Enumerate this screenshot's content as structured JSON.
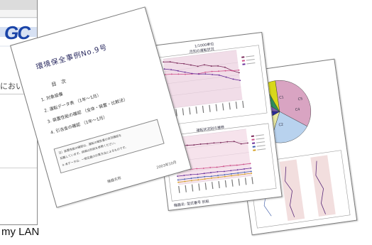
{
  "background_window": {
    "logo_text": "GC",
    "body_text": "におい",
    "accent_color": "#1a44a8"
  },
  "caption": "my LAN",
  "report_page": {
    "title": "環境保全事例No.9号",
    "toc_heading": "目　次",
    "toc_items": [
      "1. 対象設備",
      "2. 運転データ表 （1年〜1月）",
      "3. 装置性能の確認 （全体・装置・比較法）",
      "4. 引当金の確認 （1年〜1月）"
    ],
    "note_lines": [
      "注）装置性能の確認は、運転の報告書の状況確認を",
      "記載しています。詳細は別紙を参照ください。",
      "※ 本データは、一般定義の計算方法によるものです。"
    ],
    "footer_left": "機器名称",
    "footer_right": "2003年10月"
  },
  "chart_page": {
    "header": "1/1000単位",
    "chart1_title": "月別の運転状況",
    "chart2_title": "運転状況別の推移",
    "footer": "機器名: 型式番号 別紙"
  },
  "pie_page": {
    "slice_labels": [
      "C1",
      "C2",
      "C3",
      "C4",
      "C5"
    ]
  },
  "chart_data": [
    {
      "type": "line",
      "title": "月別の運転状況",
      "x": [
        1,
        2,
        3,
        4,
        5,
        6,
        7,
        8,
        9,
        10,
        11,
        12
      ],
      "series": [
        {
          "values": [
            330,
            325,
            310,
            300,
            285,
            270,
            275,
            260,
            255,
            240,
            210,
            190
          ]
        },
        {
          "values": [
            240,
            238,
            232,
            225,
            222,
            218,
            222,
            222,
            218,
            215,
            210,
            208
          ]
        },
        {
          "values": [
            280,
            270,
            255,
            240,
            225,
            215,
            210,
            200,
            190,
            170,
            150,
            135
          ]
        }
      ],
      "ylim": [
        0,
        350
      ],
      "grid": true
    },
    {
      "type": "line",
      "title": "運転状況別の推移",
      "x": [
        1,
        2,
        3,
        4,
        5,
        6,
        7,
        8,
        9,
        10,
        11,
        12
      ],
      "series": [
        {
          "values": [
            82,
            81,
            81,
            80,
            80,
            79,
            79,
            78,
            78,
            77,
            70,
            70
          ]
        },
        {
          "values": [
            30,
            30,
            29,
            29,
            28,
            28,
            27,
            27,
            27,
            26,
            26,
            26
          ]
        },
        {
          "values": [
            18,
            18,
            18,
            17,
            17,
            17,
            17,
            16,
            16,
            16,
            16,
            16
          ]
        },
        {
          "values": [
            10,
            10,
            10,
            10,
            10,
            9,
            9,
            9,
            9,
            9,
            9,
            9
          ]
        },
        {
          "values": [
            5,
            5,
            5,
            5,
            5,
            5,
            5,
            5,
            5,
            5,
            5,
            5
          ]
        }
      ],
      "ylim": [
        0,
        100
      ],
      "grid": true
    },
    {
      "type": "pie",
      "categories": [
        "C1",
        "C2",
        "C3",
        "C4",
        "C5",
        "C6",
        "C7"
      ],
      "values": [
        35,
        22,
        12,
        9,
        8,
        8,
        6
      ],
      "colors": [
        "#d9a4c2",
        "#b8d2ee",
        "#e8e8a0",
        "#2a2a9a",
        "#7a5ab0",
        "#2f8e5a",
        "#d8d81a"
      ]
    }
  ]
}
